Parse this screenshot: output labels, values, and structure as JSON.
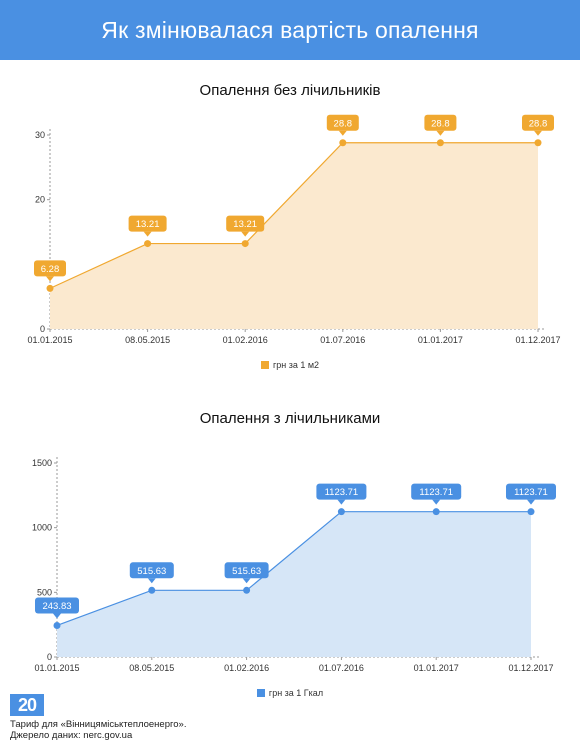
{
  "header": {
    "title": "Як змінювалася вартість опалення"
  },
  "footer": {
    "logo_text": "20",
    "line1": "Тариф для «Вінницяміськтеплоенерго».",
    "line2": "Джерело даних: nerc.gov.ua"
  },
  "colors": {
    "header_bg": "#4a90e2",
    "chart1_accent": "#f0a830",
    "chart1_fill": "#fbe9cf",
    "chart2_accent": "#4a90e2",
    "chart2_fill": "#d6e6f7"
  },
  "chart_data": [
    {
      "type": "area",
      "title": "Опалення без лічильників",
      "categories": [
        "01.01.2015",
        "08.05.2015",
        "01.02.2016",
        "01.07.2016",
        "01.01.2017",
        "01.12.2017"
      ],
      "series": [
        {
          "name": "грн за 1 м2",
          "values": [
            6.28,
            13.21,
            13.21,
            28.8,
            28.8,
            28.8
          ],
          "labels": [
            "6.28",
            "13.21",
            "13.21",
            "28.8",
            "28.8",
            "28.8"
          ]
        }
      ],
      "yticks": [
        "0",
        "10",
        "20",
        "30"
      ],
      "ylim": [
        0,
        30
      ],
      "xlabel": "",
      "ylabel": "",
      "legend": "bottom"
    },
    {
      "type": "area",
      "title": "Опалення з лічильниками",
      "categories": [
        "01.01.2015",
        "08.05.2015",
        "01.02.2016",
        "01.07.2016",
        "01.01.2017",
        "01.12.2017"
      ],
      "series": [
        {
          "name": "грн за 1 Гкал",
          "values": [
            243.83,
            515.63,
            515.63,
            1123.71,
            1123.71,
            1123.71
          ],
          "labels": [
            "243.83",
            "515.63",
            "515.63",
            "1123.71",
            "1123.71",
            "1123.71"
          ]
        }
      ],
      "yticks": [
        "0",
        "500",
        "1000",
        "1500"
      ],
      "ylim": [
        0,
        1500
      ],
      "xlabel": "",
      "ylabel": "",
      "legend": "bottom"
    }
  ]
}
